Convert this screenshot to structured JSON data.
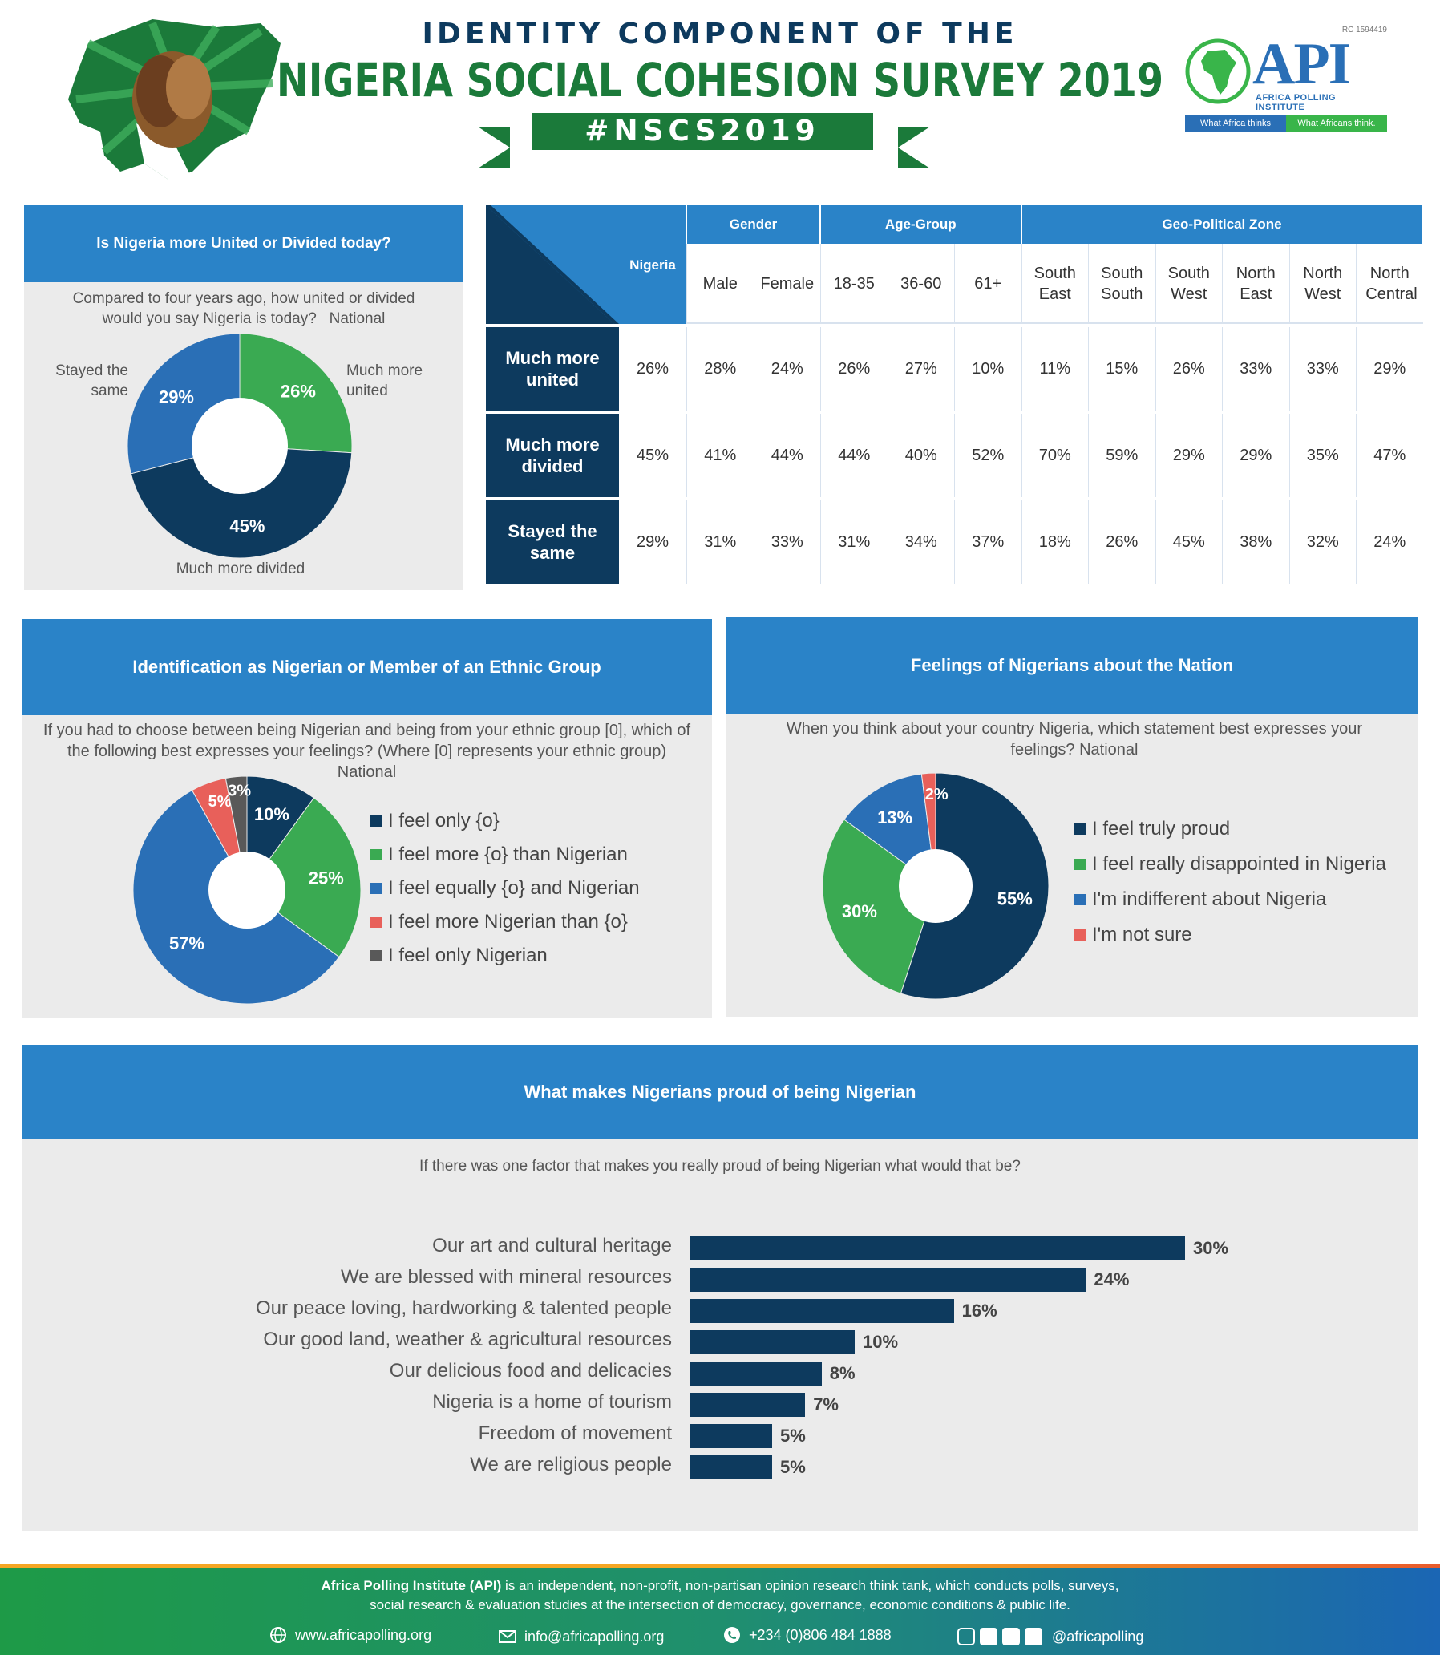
{
  "header": {
    "subtitle": "IDENTITY COMPONENT OF THE",
    "title": "NIGERIA SOCIAL COHESION SURVEY 2019",
    "hashtag": "#NSCS2019"
  },
  "logo": {
    "rc": "RC 1594419",
    "name": "API",
    "full_name": "AFRICA POLLING INSTITUTE",
    "tag_left": "What Africa thinks",
    "tag_right": "What Africans think."
  },
  "colors": {
    "navy": "#0d3a5e",
    "blue": "#2a6fb6",
    "band_blue": "#2a83c8",
    "green": "#3aaa52",
    "red": "#e8605a",
    "gray": "#595959",
    "panel": "#ebebeb"
  },
  "united_panel": {
    "title": "Is Nigeria more United or Divided today?",
    "question": "Compared to four years ago, how united or divided would you say Nigeria is today?",
    "scope": "National",
    "labels": {
      "united": "Much more united",
      "divided": "Much more divided",
      "same": "Stayed the same"
    }
  },
  "table": {
    "corner_label": "Nigeria",
    "groups": [
      "Gender",
      "Age-Group",
      "Geo-Political Zone"
    ],
    "columns": [
      "Male",
      "Female",
      "18-35",
      "36-60",
      "61+",
      "South East",
      "South South",
      "South West",
      "North East",
      "North West",
      "North Central"
    ],
    "rows": [
      {
        "label": "Much more united",
        "values": [
          "26%",
          "28%",
          "24%",
          "26%",
          "27%",
          "10%",
          "11%",
          "15%",
          "26%",
          "33%",
          "33%",
          "29%"
        ]
      },
      {
        "label": "Much more divided",
        "values": [
          "45%",
          "41%",
          "44%",
          "44%",
          "40%",
          "52%",
          "70%",
          "59%",
          "29%",
          "29%",
          "35%",
          "47%"
        ]
      },
      {
        "label": "Stayed the same",
        "values": [
          "29%",
          "31%",
          "33%",
          "31%",
          "34%",
          "37%",
          "18%",
          "26%",
          "45%",
          "38%",
          "32%",
          "24%"
        ]
      }
    ]
  },
  "identity_panel": {
    "title": "Identification as Nigerian or Member of an Ethnic Group",
    "question": "If you had to choose between being Nigerian and being from your ethnic group [0], which of the following best expresses your feelings? (Where [0] represents your ethnic group)",
    "scope": "National",
    "legend": [
      "I feel only {o}",
      "I feel more {o} than Nigerian",
      "I feel equally {o} and Nigerian",
      "I feel more Nigerian than {o}",
      "I feel only Nigerian"
    ]
  },
  "feelings_panel": {
    "title": "Feelings of Nigerians about the Nation",
    "question": "When you think about your country Nigeria, which statement best expresses your feelings? National",
    "legend": [
      "I feel truly proud",
      "I feel really disappointed in Nigeria",
      "I'm indifferent about Nigeria",
      "I'm not sure"
    ]
  },
  "proud_panel": {
    "title": "What makes Nigerians proud of being Nigerian",
    "question": "If there was one factor that makes you really proud of being Nigerian what would that be?"
  },
  "chart_data": [
    {
      "type": "pie",
      "title": "Is Nigeria more United or Divided today?",
      "donut": true,
      "categories": [
        "Much more united",
        "Much more divided",
        "Stayed the same"
      ],
      "values": [
        26,
        45,
        29
      ],
      "labels": [
        "26%",
        "45%",
        "29%"
      ],
      "colors": [
        "#3aaa52",
        "#0d3a5e",
        "#2a6fb6"
      ]
    },
    {
      "type": "pie",
      "title": "Identification as Nigerian or Member of an Ethnic Group",
      "donut": true,
      "categories": [
        "I feel only {o}",
        "I feel more {o} than Nigerian",
        "I feel equally {o} and Nigerian",
        "I feel more Nigerian than {o}",
        "I feel only Nigerian"
      ],
      "values": [
        10,
        25,
        57,
        5,
        3
      ],
      "labels": [
        "10%",
        "25%",
        "57%",
        "5%",
        "3%"
      ],
      "colors": [
        "#0d3a5e",
        "#3aaa52",
        "#2a6fb6",
        "#e8605a",
        "#595959"
      ]
    },
    {
      "type": "pie",
      "title": "Feelings of Nigerians about the Nation",
      "donut": true,
      "categories": [
        "I feel truly proud",
        "I feel really disappointed in Nigeria",
        "I'm indifferent about Nigeria",
        "I'm not sure"
      ],
      "values": [
        55,
        30,
        13,
        2
      ],
      "labels": [
        "55%",
        "30%",
        "13%",
        "2%"
      ],
      "colors": [
        "#0d3a5e",
        "#3aaa52",
        "#2a6fb6",
        "#e8605a"
      ]
    },
    {
      "type": "bar",
      "orientation": "horizontal",
      "title": "What makes Nigerians proud of being Nigerian",
      "categories": [
        "Our art and cultural heritage",
        "We are blessed with mineral resources",
        "Our peace loving, hardworking & talented people",
        "Our good land, weather & agricultural resources",
        "Our delicious food and delicacies",
        "Nigeria is a home of tourism",
        "Freedom of movement",
        "We are religious people"
      ],
      "values": [
        30,
        24,
        16,
        10,
        8,
        7,
        5,
        5
      ],
      "labels": [
        "30%",
        "24%",
        "16%",
        "10%",
        "8%",
        "7%",
        "5%",
        "5%"
      ],
      "color": "#0d3a5e"
    }
  ],
  "footer": {
    "org": "Africa Polling Institute (API)",
    "desc1": " is an independent, non-profit, non-partisan opinion research think tank, which conducts polls, surveys,",
    "desc2": "social research & evaluation studies at the intersection of democracy, governance, economic conditions & public life.",
    "web": "www.africapolling.org",
    "email": "info@africapolling.org",
    "phone": "+234 (0)806 484 1888",
    "social": "@africapolling"
  }
}
